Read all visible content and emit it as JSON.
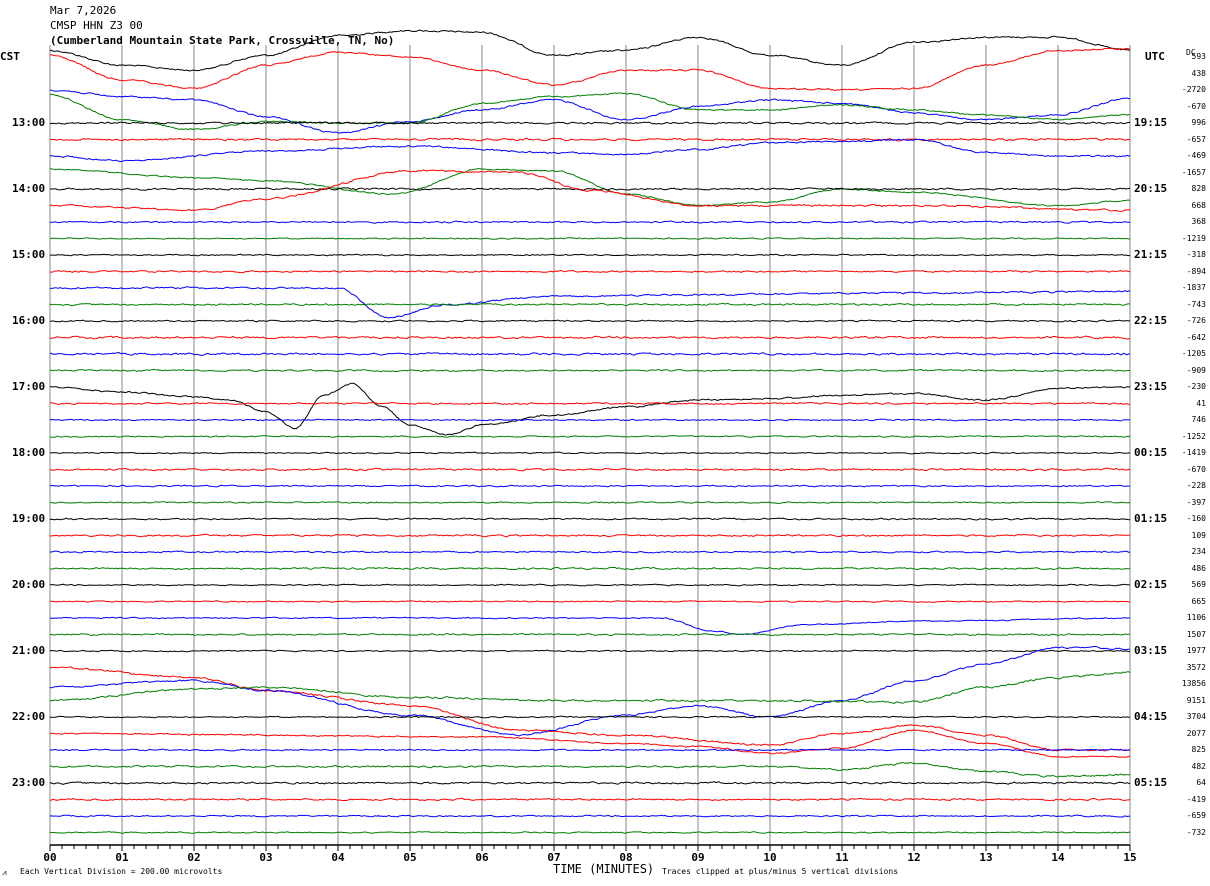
{
  "header": {
    "date": "Mar 7,2026",
    "station": "CMSP HHN Z3 00",
    "location": "(Cumberland Mountain State Park, Crossville, TN, No)"
  },
  "left_tz": "CST",
  "right_tz": "UTC",
  "dc_label": "DC",
  "footer": {
    "xlabel": "TIME (MINUTES)",
    "scale_note": "Each Vertical Division =  200.00 microvolts",
    "clip_note": "Traces clipped at plus/minus 5 vertical divisions"
  },
  "chart_data": {
    "type": "line",
    "title": "CMSP HHN Z3 00 helicorder",
    "xlabel": "TIME (MINUTES)",
    "xlim": [
      0,
      15
    ],
    "x_ticks": [
      "00",
      "01",
      "02",
      "03",
      "04",
      "05",
      "06",
      "07",
      "08",
      "09",
      "10",
      "11",
      "12",
      "13",
      "14",
      "15"
    ],
    "trace_count": 48,
    "trace_minutes": 15,
    "units_per_division_microvolts": 200,
    "clip_divisions": 5,
    "colors": [
      "#000000",
      "#ff0000",
      "#0000ff",
      "#007f00"
    ],
    "left_labels": [
      "13:00",
      "14:00",
      "15:00",
      "16:00",
      "17:00",
      "18:00",
      "19:00",
      "20:00",
      "21:00",
      "22:00",
      "23:00"
    ],
    "right_labels": [
      "19:15",
      "20:15",
      "21:15",
      "22:15",
      "23:15",
      "00:15",
      "01:15",
      "02:15",
      "03:15",
      "04:15",
      "05:15"
    ],
    "label_first_trace": 4,
    "label_every": 4,
    "dc_offsets": [
      "593",
      "438",
      "-2720",
      "-670",
      "996",
      "-657",
      "-469",
      "-1657",
      "828",
      "668",
      "368",
      "-1219",
      "-318",
      "-894",
      "-1837",
      "-743",
      "-726",
      "-642",
      "-1205",
      "-909",
      "-230",
      "41",
      "746",
      "-1252",
      "-1419",
      "-670",
      "-228",
      "-397",
      "-160",
      "109",
      "234",
      "486",
      "569",
      "665",
      "1106",
      "1507",
      "1977",
      "3572",
      "13856",
      "9151",
      "3704",
      "2077",
      "825",
      "482",
      "64",
      "-419",
      "-659",
      "-732"
    ],
    "drift_divisions": {
      "0": [
        [
          0,
          0.4
        ],
        [
          1,
          -0.5
        ],
        [
          2,
          -0.8
        ],
        [
          3,
          0.1
        ],
        [
          4,
          1.3
        ],
        [
          5,
          1.6
        ],
        [
          6,
          1.5
        ],
        [
          7,
          0.1
        ],
        [
          8,
          0.4
        ],
        [
          9,
          1.2
        ],
        [
          10,
          0.1
        ],
        [
          11,
          -0.5
        ],
        [
          12,
          0.9
        ],
        [
          13,
          1.2
        ],
        [
          14,
          1.2
        ],
        [
          15,
          0.4
        ]
      ],
      "1": [
        [
          0,
          1.1
        ],
        [
          1,
          -0.4
        ],
        [
          2,
          -0.9
        ],
        [
          3,
          0.5
        ],
        [
          4,
          1.3
        ],
        [
          5,
          1.0
        ],
        [
          6,
          0.2
        ],
        [
          7,
          -0.7
        ],
        [
          8,
          0.2
        ],
        [
          9,
          0.2
        ],
        [
          10,
          -0.9
        ],
        [
          11,
          -1.0
        ],
        [
          12,
          -0.9
        ],
        [
          13,
          0.5
        ],
        [
          14,
          1.4
        ],
        [
          15,
          1.5
        ]
      ],
      "2": [
        [
          0,
          0
        ],
        [
          1,
          -0.4
        ],
        [
          2,
          -0.6
        ],
        [
          3,
          -1.6
        ],
        [
          4,
          -2.6
        ],
        [
          5,
          -1.9
        ],
        [
          6,
          -1.2
        ],
        [
          7,
          -0.6
        ],
        [
          8,
          -1.8
        ],
        [
          9,
          -1.0
        ],
        [
          10,
          -0.6
        ],
        [
          11,
          -0.8
        ],
        [
          12,
          -1.4
        ],
        [
          13,
          -1.8
        ],
        [
          14,
          -1.5
        ],
        [
          15,
          -0.5
        ]
      ],
      "3": [
        [
          0,
          0.7
        ],
        [
          1,
          -0.8
        ],
        [
          2,
          -1.4
        ],
        [
          3,
          -0.9
        ],
        [
          4,
          -1.0
        ],
        [
          5,
          -1.0
        ],
        [
          6,
          0.2
        ],
        [
          7,
          0.6
        ],
        [
          8,
          0.8
        ],
        [
          9,
          -0.2
        ],
        [
          10,
          -0.2
        ],
        [
          11,
          0.1
        ],
        [
          12,
          -0.2
        ],
        [
          13,
          -0.5
        ],
        [
          14,
          -0.8
        ],
        [
          15,
          -0.5
        ]
      ],
      "6": [
        [
          0,
          0
        ],
        [
          1,
          -0.3
        ],
        [
          3,
          0.3
        ],
        [
          5,
          0.6
        ],
        [
          7,
          0.2
        ],
        [
          8,
          0.1
        ],
        [
          9,
          0.4
        ],
        [
          10,
          0.8
        ],
        [
          11,
          0.9
        ],
        [
          12,
          1.0
        ],
        [
          13,
          0.2
        ],
        [
          14,
          0
        ],
        [
          15,
          0
        ]
      ],
      "7": [
        [
          0,
          0.2
        ],
        [
          2,
          -0.3
        ],
        [
          3,
          -0.5
        ],
        [
          4.8,
          -1.3
        ],
        [
          6,
          0.2
        ],
        [
          7,
          0.1
        ],
        [
          8,
          -1.3
        ],
        [
          9,
          -2.0
        ],
        [
          10,
          -1.8
        ],
        [
          11,
          -1.0
        ],
        [
          12,
          -1.2
        ],
        [
          14,
          -2.0
        ],
        [
          15,
          -1.7
        ]
      ],
      "9": [
        [
          0,
          0
        ],
        [
          2,
          -0.3
        ],
        [
          3,
          0.4
        ],
        [
          5,
          2.1
        ],
        [
          6.5,
          2.0
        ],
        [
          7.5,
          0.9
        ],
        [
          9,
          0
        ],
        [
          10,
          0
        ],
        [
          12,
          0
        ],
        [
          15,
          -0.3
        ]
      ],
      "14": [
        [
          0,
          0
        ],
        [
          4,
          0
        ],
        [
          4.7,
          -1.8
        ],
        [
          5.5,
          -1.0
        ],
        [
          7,
          -0.5
        ],
        [
          9,
          -0.4
        ],
        [
          12,
          -0.3
        ],
        [
          15,
          -0.2
        ]
      ],
      "20": [
        [
          0,
          0
        ],
        [
          1,
          -0.3
        ],
        [
          2,
          -0.6
        ],
        [
          2.5,
          -0.8
        ],
        [
          3,
          -1.5
        ],
        [
          3.4,
          -2.5
        ],
        [
          3.8,
          -0.5
        ],
        [
          4.2,
          0.2
        ],
        [
          4.6,
          -1.2
        ],
        [
          5,
          -2.3
        ],
        [
          5.5,
          -2.9
        ],
        [
          6,
          -2.3
        ],
        [
          7,
          -1.7
        ],
        [
          8,
          -1.2
        ],
        [
          9,
          -0.8
        ],
        [
          10,
          -0.7
        ],
        [
          11,
          -0.5
        ],
        [
          12,
          -0.4
        ],
        [
          13,
          -0.8
        ],
        [
          14,
          -0.1
        ],
        [
          15,
          0
        ]
      ],
      "34": [
        [
          0,
          0
        ],
        [
          8.5,
          0
        ],
        [
          9.2,
          -0.8
        ],
        [
          9.6,
          -1.0
        ],
        [
          10.5,
          -0.4
        ],
        [
          12,
          -0.2
        ],
        [
          15,
          0
        ]
      ],
      "37": [
        [
          0,
          0
        ],
        [
          2,
          -0.6
        ],
        [
          3,
          -1.4
        ],
        [
          5,
          -2.3
        ],
        [
          6.5,
          -3.8
        ],
        [
          8,
          -4.1
        ],
        [
          10,
          -4.7
        ],
        [
          11,
          -4.0
        ],
        [
          12,
          -3.5
        ],
        [
          13,
          -4.1
        ],
        [
          14,
          -5.0
        ],
        [
          15,
          -5.0
        ]
      ],
      "38": [
        [
          0,
          -0.2
        ],
        [
          2,
          0.2
        ],
        [
          3,
          -0.4
        ],
        [
          5,
          -1.9
        ],
        [
          6.5,
          -3.1
        ],
        [
          8,
          -1.9
        ],
        [
          9,
          -1.3
        ],
        [
          10,
          -2.0
        ],
        [
          11,
          -1.0
        ],
        [
          12,
          0.2
        ],
        [
          13,
          1.2
        ],
        [
          14,
          2.2
        ],
        [
          14.5,
          2.2
        ],
        [
          15,
          2.1
        ]
      ],
      "39": [
        [
          0,
          0
        ],
        [
          2,
          0.7
        ],
        [
          3,
          0.8
        ],
        [
          5,
          0.2
        ],
        [
          7,
          0
        ],
        [
          10,
          0
        ],
        [
          12,
          -0.1
        ],
        [
          13,
          0.8
        ],
        [
          14,
          1.4
        ],
        [
          15,
          1.7
        ]
      ],
      "41": [
        [
          0,
          0
        ],
        [
          6,
          -0.2
        ],
        [
          8,
          -0.6
        ],
        [
          9,
          -0.8
        ],
        [
          10,
          -1.2
        ],
        [
          11,
          -0.9
        ],
        [
          12,
          0.2
        ],
        [
          13,
          -0.6
        ],
        [
          14,
          -1.4
        ],
        [
          15,
          -1.4
        ]
      ],
      "43": [
        [
          0,
          0
        ],
        [
          10,
          0
        ],
        [
          11,
          -0.2
        ],
        [
          12,
          0.2
        ],
        [
          13,
          -0.3
        ],
        [
          14,
          -0.6
        ],
        [
          15,
          -0.5
        ]
      ]
    }
  }
}
